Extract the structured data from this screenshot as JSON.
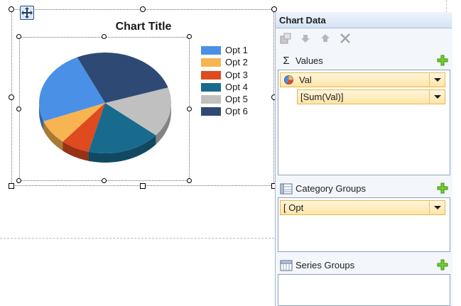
{
  "chart": {
    "title": "Chart Title",
    "legend": [
      {
        "label": "Opt 1",
        "color": "#4a90e6"
      },
      {
        "label": "Opt 2",
        "color": "#f7b451"
      },
      {
        "label": "Opt 3",
        "color": "#df4a1f"
      },
      {
        "label": "Opt 4",
        "color": "#196b8e"
      },
      {
        "label": "Opt 5",
        "color": "#c0c0c0"
      },
      {
        "label": "Opt 6",
        "color": "#2e4a74"
      }
    ]
  },
  "chart_data": {
    "type": "pie",
    "categories": [
      "Opt 1",
      "Opt 2",
      "Opt 3",
      "Opt 4",
      "Opt 5",
      "Opt 6"
    ],
    "values": [
      24,
      8,
      7,
      18,
      16,
      27
    ],
    "colors": [
      "#4a90e6",
      "#f7b451",
      "#df4a1f",
      "#196b8e",
      "#c0c0c0",
      "#2e4a74"
    ],
    "title": "Chart Title",
    "legend_position": "right",
    "style": "3D"
  },
  "panel": {
    "title": "Chart Data",
    "toolbar": [
      "properties-icon",
      "move-down-icon",
      "move-up-icon",
      "delete-icon"
    ],
    "values": {
      "label": "Values",
      "items": [
        {
          "label": "Val"
        },
        {
          "label": "[Sum(Val)]"
        }
      ]
    },
    "category_groups": {
      "label": "Category Groups",
      "items": [
        {
          "label": "[ Opt"
        }
      ]
    },
    "series_groups": {
      "label": "Series Groups",
      "items": []
    }
  }
}
